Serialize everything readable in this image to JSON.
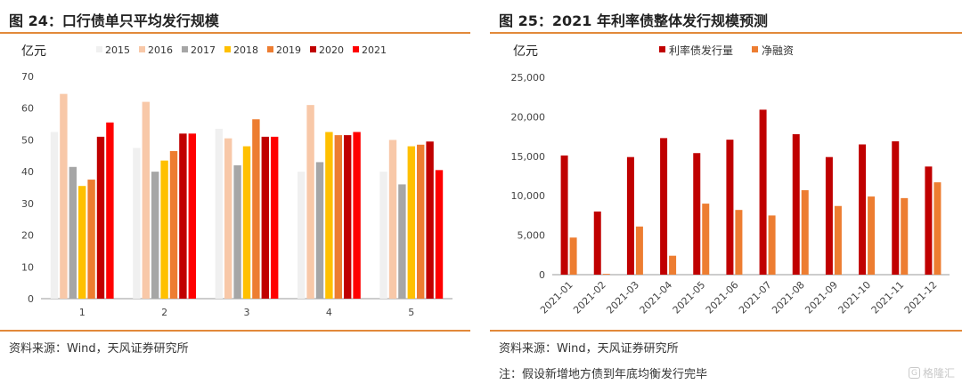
{
  "charts": [
    {
      "title": "图 24：口行债单只平均发行规模",
      "unit": "亿元",
      "source": "资料来源：Wind，天风证券研究所",
      "note": ""
    },
    {
      "title": "图 25：2021 年利率债整体发行规模预测",
      "unit": "亿元",
      "source": "资料来源：Wind，天风证券研究所",
      "note": "注：假设新增地方债到年底均衡发行完毕"
    }
  ],
  "watermark": "格隆汇",
  "chart_data": [
    {
      "type": "bar",
      "categories": [
        "1",
        "2",
        "3",
        "4",
        "5"
      ],
      "ylim": [
        0,
        70
      ],
      "yticks": [
        0,
        10,
        20,
        30,
        40,
        50,
        60,
        70
      ],
      "ylabel": "亿元",
      "legend_position": "top",
      "grid": false,
      "series": [
        {
          "name": "2015",
          "color": "#f0f0f0",
          "values": [
            52.5,
            47.5,
            53.5,
            40,
            40
          ]
        },
        {
          "name": "2016",
          "color": "#f8c8a8",
          "values": [
            64.5,
            62,
            50.5,
            61,
            50
          ]
        },
        {
          "name": "2017",
          "color": "#a6a6a6",
          "values": [
            41.5,
            40,
            42,
            43,
            36
          ]
        },
        {
          "name": "2018",
          "color": "#ffc000",
          "values": [
            35.5,
            43.5,
            48,
            52.5,
            48
          ]
        },
        {
          "name": "2019",
          "color": "#ed7d31",
          "values": [
            37.5,
            46.5,
            56.5,
            51.5,
            48.5
          ]
        },
        {
          "name": "2020",
          "color": "#c00000",
          "values": [
            51,
            52,
            51,
            51.5,
            49.5
          ]
        },
        {
          "name": "2021",
          "color": "#ff0000",
          "values": [
            55.5,
            52,
            51,
            52.5,
            40.5
          ]
        }
      ]
    },
    {
      "type": "bar",
      "categories": [
        "2021-01",
        "2021-02",
        "2021-03",
        "2021-04",
        "2021-05",
        "2021-06",
        "2021-07",
        "2021-08",
        "2021-09",
        "2021-10",
        "2021-11",
        "2021-12"
      ],
      "ylim": [
        0,
        25000
      ],
      "yticks": [
        0,
        5000,
        10000,
        15000,
        20000,
        25000
      ],
      "ytick_labels": [
        "0",
        "5,000",
        "10,000",
        "15,000",
        "20,000",
        "25,000"
      ],
      "ylabel": "亿元",
      "legend_position": "top",
      "grid": false,
      "series": [
        {
          "name": "利率债发行量",
          "color": "#c00000",
          "values": [
            15100,
            8000,
            14900,
            17300,
            15400,
            17100,
            20900,
            17800,
            14900,
            16500,
            16900,
            13700
          ]
        },
        {
          "name": "净融资",
          "color": "#ed7d31",
          "values": [
            4700,
            100,
            6100,
            2400,
            9000,
            8200,
            7500,
            10700,
            8700,
            9900,
            9700,
            11700
          ]
        }
      ]
    }
  ]
}
